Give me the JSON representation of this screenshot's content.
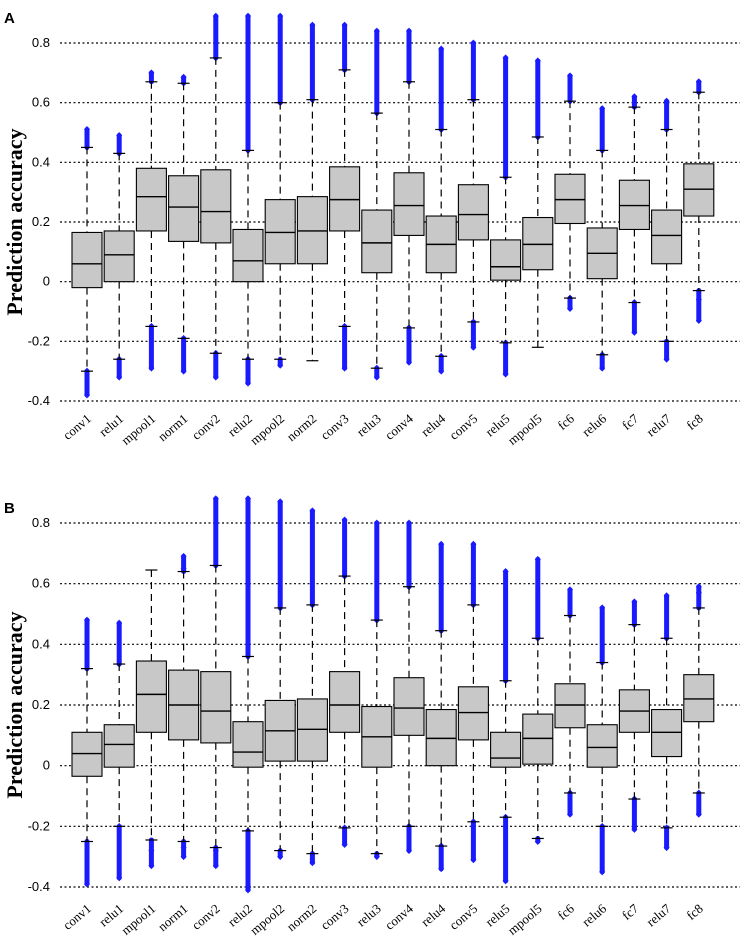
{
  "chart_data": [
    {
      "type": "box",
      "panel_label": "A",
      "ylabel": "Prediction accuracy",
      "xlabel": "",
      "ylim": [
        -0.4,
        0.9
      ],
      "yticks": [
        "0.8",
        "0.6",
        "0.4",
        "0.2",
        "0",
        "-0.2",
        "-0.4"
      ],
      "ytick_values": [
        0.8,
        0.6,
        0.4,
        0.2,
        0,
        -0.2,
        -0.4
      ],
      "grid": "horizontal dotted",
      "box_color": "#c8c8c8",
      "outlier_color": "#1a1aff",
      "categories": [
        "conv1",
        "relu1",
        "mpool1",
        "norm1",
        "conv2",
        "relu2",
        "mpool2",
        "norm2",
        "conv3",
        "relu3",
        "conv4",
        "relu4",
        "conv5",
        "relu5",
        "mpool5",
        "fc6",
        "relu6",
        "fc7",
        "relu7",
        "fc8"
      ],
      "boxes": [
        {
          "q1": -0.02,
          "median": 0.06,
          "q3": 0.165,
          "whisker_low": -0.3,
          "whisker_high": 0.45,
          "outliers_low": [
            -0.3,
            -0.38
          ],
          "outliers_high": [
            0.45,
            0.51
          ]
        },
        {
          "q1": 0.0,
          "median": 0.09,
          "q3": 0.17,
          "whisker_low": -0.26,
          "whisker_high": 0.43,
          "outliers_low": [
            -0.26,
            -0.32
          ],
          "outliers_high": [
            0.43,
            0.49
          ]
        },
        {
          "q1": 0.17,
          "median": 0.285,
          "q3": 0.38,
          "whisker_low": -0.15,
          "whisker_high": 0.67,
          "outliers_low": [
            -0.15,
            -0.29
          ],
          "outliers_high": [
            0.7
          ]
        },
        {
          "q1": 0.135,
          "median": 0.25,
          "q3": 0.355,
          "whisker_low": -0.19,
          "whisker_high": 0.665,
          "outliers_low": [
            -0.19,
            -0.3
          ],
          "outliers_high": [
            0.685
          ]
        },
        {
          "q1": 0.13,
          "median": 0.235,
          "q3": 0.375,
          "whisker_low": -0.24,
          "whisker_high": 0.75,
          "outliers_low": [
            -0.24,
            -0.32
          ],
          "outliers_high": [
            0.75,
            0.89
          ]
        },
        {
          "q1": 0.0,
          "median": 0.07,
          "q3": 0.175,
          "whisker_low": -0.26,
          "whisker_high": 0.44,
          "outliers_low": [
            -0.26,
            -0.34
          ],
          "outliers_high": [
            0.44,
            0.89
          ]
        },
        {
          "q1": 0.06,
          "median": 0.165,
          "q3": 0.275,
          "whisker_low": -0.26,
          "whisker_high": 0.6,
          "outliers_low": [
            -0.28
          ],
          "outliers_high": [
            0.6,
            0.89
          ]
        },
        {
          "q1": 0.06,
          "median": 0.17,
          "q3": 0.285,
          "whisker_low": -0.265,
          "whisker_high": 0.61,
          "outliers_low": [],
          "outliers_high": [
            0.61,
            0.86
          ]
        },
        {
          "q1": 0.17,
          "median": 0.275,
          "q3": 0.385,
          "whisker_low": -0.15,
          "whisker_high": 0.71,
          "outliers_low": [
            -0.15,
            -0.29
          ],
          "outliers_high": [
            0.71,
            0.86
          ]
        },
        {
          "q1": 0.03,
          "median": 0.13,
          "q3": 0.24,
          "whisker_low": -0.29,
          "whisker_high": 0.565,
          "outliers_low": [
            -0.29,
            -0.32
          ],
          "outliers_high": [
            0.565,
            0.84
          ]
        },
        {
          "q1": 0.155,
          "median": 0.255,
          "q3": 0.365,
          "whisker_low": -0.155,
          "whisker_high": 0.67,
          "outliers_low": [
            -0.155,
            -0.27
          ],
          "outliers_high": [
            0.67,
            0.84
          ]
        },
        {
          "q1": 0.03,
          "median": 0.125,
          "q3": 0.22,
          "whisker_low": -0.25,
          "whisker_high": 0.51,
          "outliers_low": [
            -0.25,
            -0.3
          ],
          "outliers_high": [
            0.51,
            0.78
          ]
        },
        {
          "q1": 0.14,
          "median": 0.225,
          "q3": 0.325,
          "whisker_low": -0.135,
          "whisker_high": 0.61,
          "outliers_low": [
            -0.135,
            -0.22
          ],
          "outliers_high": [
            0.61,
            0.8
          ]
        },
        {
          "q1": 0.005,
          "median": 0.05,
          "q3": 0.14,
          "whisker_low": -0.205,
          "whisker_high": 0.35,
          "outliers_low": [
            -0.205,
            -0.31
          ],
          "outliers_high": [
            0.35,
            0.75
          ]
        },
        {
          "q1": 0.04,
          "median": 0.125,
          "q3": 0.215,
          "whisker_low": -0.22,
          "whisker_high": 0.485,
          "outliers_low": [],
          "outliers_high": [
            0.485,
            0.74
          ]
        },
        {
          "q1": 0.195,
          "median": 0.275,
          "q3": 0.36,
          "whisker_low": -0.055,
          "whisker_high": 0.605,
          "outliers_low": [
            -0.055,
            -0.09
          ],
          "outliers_high": [
            0.605,
            0.69
          ]
        },
        {
          "q1": 0.01,
          "median": 0.095,
          "q3": 0.18,
          "whisker_low": -0.245,
          "whisker_high": 0.44,
          "outliers_low": [
            -0.29
          ],
          "outliers_high": [
            0.44,
            0.58
          ]
        },
        {
          "q1": 0.175,
          "median": 0.255,
          "q3": 0.34,
          "whisker_low": -0.07,
          "whisker_high": 0.585,
          "outliers_low": [
            -0.07,
            -0.17
          ],
          "outliers_high": [
            0.62
          ]
        },
        {
          "q1": 0.06,
          "median": 0.155,
          "q3": 0.24,
          "whisker_low": -0.2,
          "whisker_high": 0.51,
          "outliers_low": [
            -0.26
          ],
          "outliers_high": [
            0.51,
            0.605
          ]
        },
        {
          "q1": 0.22,
          "median": 0.31,
          "q3": 0.395,
          "whisker_low": -0.03,
          "whisker_high": 0.635,
          "outliers_low": [
            -0.06,
            -0.13
          ],
          "outliers_high": [
            0.67
          ]
        }
      ]
    },
    {
      "type": "box",
      "panel_label": "B",
      "ylabel": "Prediction accuracy",
      "xlabel": "",
      "ylim": [
        -0.4,
        0.9
      ],
      "yticks": [
        "0.8",
        "0.6",
        "0.4",
        "0.2",
        "0",
        "-0.2",
        "-0.4"
      ],
      "ytick_values": [
        0.8,
        0.6,
        0.4,
        0.2,
        0,
        -0.2,
        -0.4
      ],
      "grid": "horizontal dotted",
      "box_color": "#c8c8c8",
      "outlier_color": "#1a1aff",
      "categories": [
        "conv1",
        "relu1",
        "mpool1",
        "norm1",
        "conv2",
        "relu2",
        "mpool2",
        "norm2",
        "conv3",
        "relu3",
        "conv4",
        "relu4",
        "conv5",
        "relu5",
        "mpool5",
        "fc6",
        "relu6",
        "fc7",
        "relu7",
        "fc8"
      ],
      "boxes": [
        {
          "q1": -0.035,
          "median": 0.04,
          "q3": 0.11,
          "whisker_low": -0.25,
          "whisker_high": 0.32,
          "outliers_low": [
            -0.25,
            -0.39
          ],
          "outliers_high": [
            0.32,
            0.48
          ]
        },
        {
          "q1": -0.005,
          "median": 0.07,
          "q3": 0.135,
          "whisker_low": -0.2,
          "whisker_high": 0.335,
          "outliers_low": [
            -0.2,
            -0.37
          ],
          "outliers_high": [
            0.335,
            0.47
          ]
        },
        {
          "q1": 0.11,
          "median": 0.235,
          "q3": 0.345,
          "whisker_low": -0.245,
          "whisker_high": 0.645,
          "outliers_low": [
            -0.28,
            -0.33
          ],
          "outliers_high": []
        },
        {
          "q1": 0.085,
          "median": 0.2,
          "q3": 0.315,
          "whisker_low": -0.25,
          "whisker_high": 0.64,
          "outliers_low": [
            -0.27,
            -0.3
          ],
          "outliers_high": [
            0.65,
            0.69
          ]
        },
        {
          "q1": 0.075,
          "median": 0.18,
          "q3": 0.31,
          "whisker_low": -0.27,
          "whisker_high": 0.66,
          "outliers_low": [
            -0.28,
            -0.33
          ],
          "outliers_high": [
            0.66,
            0.88
          ]
        },
        {
          "q1": -0.005,
          "median": 0.045,
          "q3": 0.145,
          "whisker_low": -0.215,
          "whisker_high": 0.36,
          "outliers_low": [
            -0.215,
            -0.41
          ],
          "outliers_high": [
            0.36,
            0.88
          ]
        },
        {
          "q1": 0.015,
          "median": 0.115,
          "q3": 0.215,
          "whisker_low": -0.28,
          "whisker_high": 0.52,
          "outliers_low": [
            -0.3
          ],
          "outliers_high": [
            0.52,
            0.87
          ]
        },
        {
          "q1": 0.015,
          "median": 0.12,
          "q3": 0.22,
          "whisker_low": -0.29,
          "whisker_high": 0.53,
          "outliers_low": [
            -0.32
          ],
          "outliers_high": [
            0.53,
            0.84
          ]
        },
        {
          "q1": 0.11,
          "median": 0.2,
          "q3": 0.31,
          "whisker_low": -0.205,
          "whisker_high": 0.625,
          "outliers_low": [
            -0.205,
            -0.26
          ],
          "outliers_high": [
            0.625,
            0.81
          ]
        },
        {
          "q1": -0.005,
          "median": 0.095,
          "q3": 0.195,
          "whisker_low": -0.29,
          "whisker_high": 0.48,
          "outliers_low": [
            -0.3
          ],
          "outliers_high": [
            0.48,
            0.8
          ]
        },
        {
          "q1": 0.1,
          "median": 0.19,
          "q3": 0.29,
          "whisker_low": -0.2,
          "whisker_high": 0.59,
          "outliers_low": [
            -0.2,
            -0.28
          ],
          "outliers_high": [
            0.59,
            0.8
          ]
        },
        {
          "q1": 0.0,
          "median": 0.09,
          "q3": 0.185,
          "whisker_low": -0.265,
          "whisker_high": 0.445,
          "outliers_low": [
            -0.265,
            -0.34
          ],
          "outliers_high": [
            0.445,
            0.73
          ]
        },
        {
          "q1": 0.085,
          "median": 0.175,
          "q3": 0.26,
          "whisker_low": -0.185,
          "whisker_high": 0.53,
          "outliers_low": [
            -0.185,
            -0.31
          ],
          "outliers_high": [
            0.53,
            0.73
          ]
        },
        {
          "q1": -0.005,
          "median": 0.025,
          "q3": 0.11,
          "whisker_low": -0.17,
          "whisker_high": 0.28,
          "outliers_low": [
            -0.17,
            -0.38
          ],
          "outliers_high": [
            0.28,
            0.64
          ]
        },
        {
          "q1": 0.005,
          "median": 0.09,
          "q3": 0.17,
          "whisker_low": -0.24,
          "whisker_high": 0.42,
          "outliers_low": [
            -0.25
          ],
          "outliers_high": [
            0.42,
            0.68
          ]
        },
        {
          "q1": 0.125,
          "median": 0.2,
          "q3": 0.27,
          "whisker_low": -0.09,
          "whisker_high": 0.495,
          "outliers_low": [
            -0.09,
            -0.16
          ],
          "outliers_high": [
            0.495,
            0.58
          ]
        },
        {
          "q1": -0.005,
          "median": 0.06,
          "q3": 0.135,
          "whisker_low": -0.2,
          "whisker_high": 0.34,
          "outliers_low": [
            -0.2,
            -0.35
          ],
          "outliers_high": [
            0.34,
            0.52
          ]
        },
        {
          "q1": 0.11,
          "median": 0.18,
          "q3": 0.25,
          "whisker_low": -0.11,
          "whisker_high": 0.465,
          "outliers_low": [
            -0.11,
            -0.21
          ],
          "outliers_high": [
            0.465,
            0.54
          ]
        },
        {
          "q1": 0.03,
          "median": 0.11,
          "q3": 0.185,
          "whisker_low": -0.205,
          "whisker_high": 0.42,
          "outliers_low": [
            -0.205,
            -0.27
          ],
          "outliers_high": [
            0.42,
            0.56
          ]
        },
        {
          "q1": 0.145,
          "median": 0.22,
          "q3": 0.3,
          "whisker_low": -0.09,
          "whisker_high": 0.52,
          "outliers_low": [
            -0.09,
            -0.16
          ],
          "outliers_high": [
            0.57,
            0.59
          ]
        }
      ]
    }
  ]
}
